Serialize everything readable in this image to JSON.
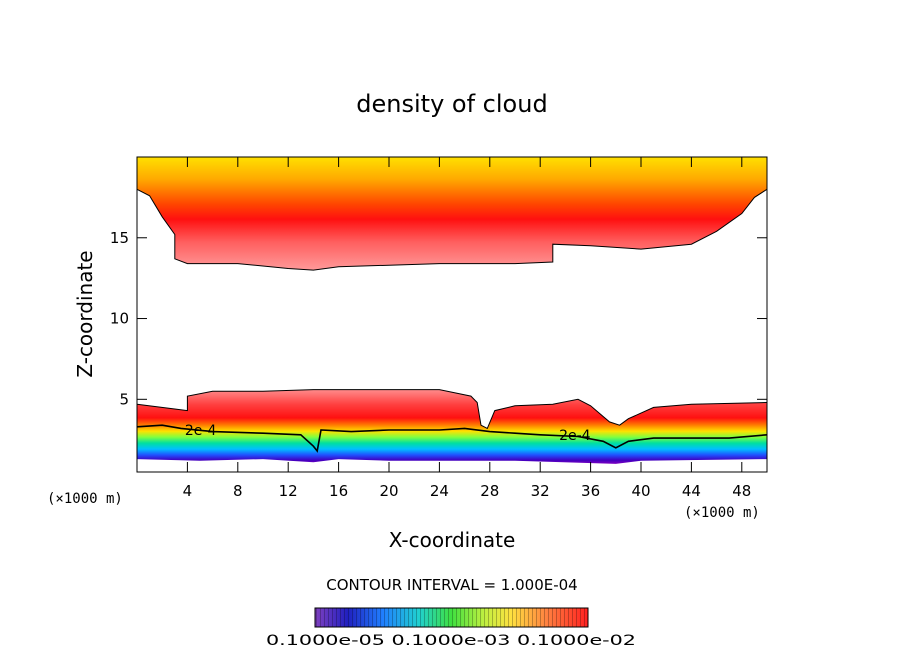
{
  "chart_data": {
    "type": "contour",
    "title": "density of cloud",
    "xlabel": "X-coordinate",
    "ylabel": "Z-coordinate",
    "x_unit": "(×1000 m)",
    "x_ticks": [
      4,
      8,
      12,
      16,
      20,
      24,
      28,
      32,
      36,
      40,
      44,
      48
    ],
    "y_ticks": [
      5,
      10,
      15
    ],
    "xlim": [
      0,
      50
    ],
    "ylim": [
      0.5,
      20
    ],
    "contour_interval_text": "CONTOUR INTERVAL = 1.000E-04",
    "contour_labels": [
      {
        "text": "2e-4",
        "x": 3.8,
        "z": 3.1
      },
      {
        "text": "2e-4",
        "x": 33.5,
        "z": 2.8
      }
    ],
    "colorbar_label_text": "0.1000e-05  0.1000e-03  0.1000e-02",
    "colorbar_range": [
      1e-06,
      0.001
    ],
    "lower_cloud_top": [
      [
        0,
        4.7
      ],
      [
        3,
        4.4
      ],
      [
        4,
        4.3
      ],
      [
        4,
        5.2
      ],
      [
        6,
        5.5
      ],
      [
        10,
        5.5
      ],
      [
        14,
        5.6
      ],
      [
        20,
        5.6
      ],
      [
        24,
        5.6
      ],
      [
        26.5,
        5.2
      ],
      [
        27,
        4.8
      ],
      [
        27.3,
        3.4
      ],
      [
        27.8,
        3.2
      ],
      [
        28.4,
        4.3
      ],
      [
        30,
        4.6
      ],
      [
        33,
        4.7
      ],
      [
        35,
        5.0
      ],
      [
        36,
        4.6
      ],
      [
        37.5,
        3.6
      ],
      [
        38.3,
        3.4
      ],
      [
        39,
        3.8
      ],
      [
        41,
        4.5
      ],
      [
        44,
        4.7
      ],
      [
        50,
        4.8
      ]
    ],
    "lower_cloud_base": [
      [
        0,
        1.3
      ],
      [
        5,
        1.2
      ],
      [
        10,
        1.3
      ],
      [
        14,
        1.1
      ],
      [
        16,
        1.3
      ],
      [
        20,
        1.2
      ],
      [
        26,
        1.2
      ],
      [
        30,
        1.2
      ],
      [
        38,
        1.0
      ],
      [
        40,
        1.2
      ],
      [
        50,
        1.3
      ]
    ],
    "contour_2e4": [
      [
        0,
        3.3
      ],
      [
        2,
        3.4
      ],
      [
        3.5,
        3.2
      ],
      [
        6,
        3.0
      ],
      [
        10,
        2.9
      ],
      [
        13,
        2.8
      ],
      [
        14,
        2.1
      ],
      [
        14.3,
        1.8
      ],
      [
        14.6,
        3.1
      ],
      [
        17,
        3.0
      ],
      [
        20,
        3.1
      ],
      [
        24,
        3.1
      ],
      [
        26,
        3.2
      ],
      [
        28,
        3.0
      ],
      [
        30,
        2.9
      ],
      [
        32,
        2.8
      ],
      [
        35,
        2.7
      ],
      [
        37,
        2.4
      ],
      [
        38,
        2.0
      ],
      [
        39,
        2.4
      ],
      [
        41,
        2.6
      ],
      [
        44,
        2.6
      ],
      [
        47,
        2.6
      ],
      [
        50,
        2.8
      ]
    ],
    "upper_cloud_base": [
      [
        0,
        18.0
      ],
      [
        1,
        17.6
      ],
      [
        2,
        16.3
      ],
      [
        3,
        15.2
      ],
      [
        3,
        13.7
      ],
      [
        4,
        13.4
      ],
      [
        8,
        13.4
      ],
      [
        12,
        13.1
      ],
      [
        14,
        13.0
      ],
      [
        16,
        13.2
      ],
      [
        20,
        13.3
      ],
      [
        24,
        13.4
      ],
      [
        30,
        13.4
      ],
      [
        33,
        13.5
      ],
      [
        33,
        14.6
      ],
      [
        36,
        14.5
      ],
      [
        40,
        14.3
      ],
      [
        44,
        14.6
      ],
      [
        46,
        15.4
      ],
      [
        48,
        16.5
      ],
      [
        49,
        17.5
      ],
      [
        50,
        18.0
      ]
    ]
  }
}
